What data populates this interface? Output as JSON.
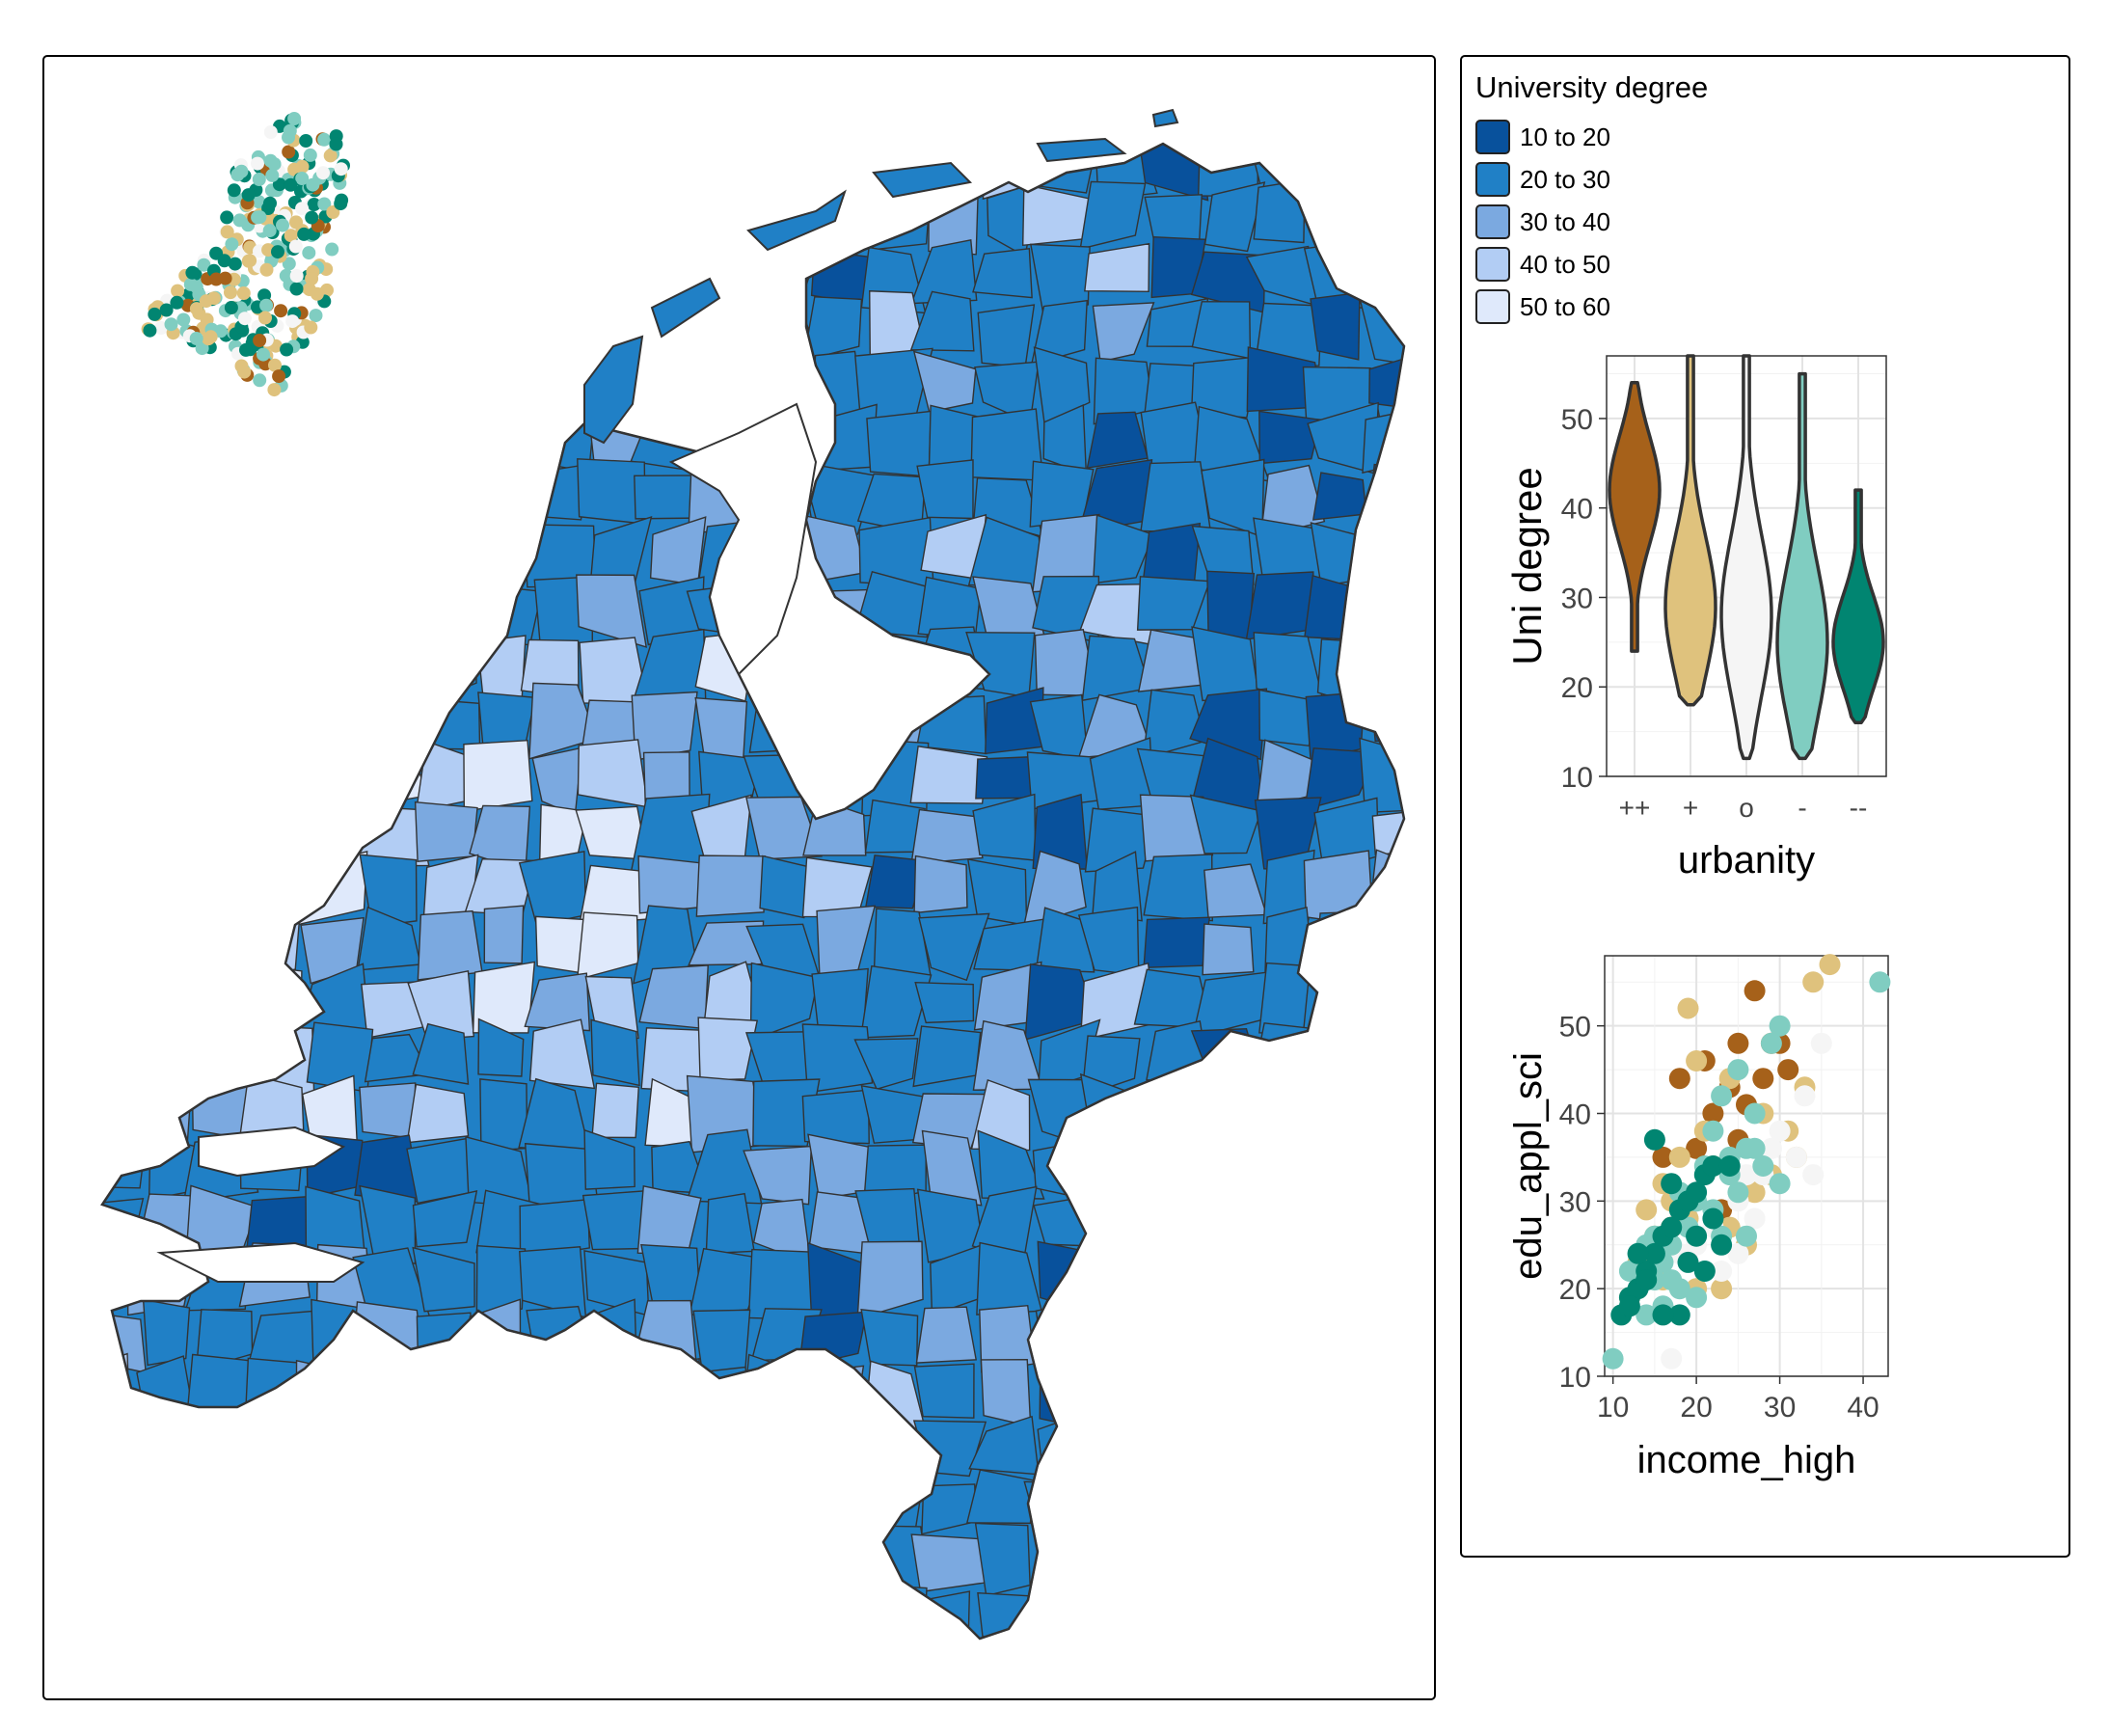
{
  "legend": {
    "title": "University degree",
    "classes": [
      {
        "label": "10 to 20",
        "color": "#08519c"
      },
      {
        "label": "20 to 30",
        "color": "#2080c6"
      },
      {
        "label": "30 to 40",
        "color": "#7ba9e0"
      },
      {
        "label": "40 to 50",
        "color": "#b2cdf4"
      },
      {
        "label": "50 to 60",
        "color": "#dfe9fb"
      }
    ]
  },
  "urbanity_colors": {
    "++": "#a6611a",
    "+": "#dfc27d",
    "o": "#f5f5f5",
    "-": "#80cdc1",
    "--": "#018571"
  },
  "chart_data": [
    {
      "type": "violin",
      "xlabel": "urbanity",
      "ylabel": "Uni degree",
      "categories": [
        "++",
        "+",
        "o",
        "-",
        "--"
      ],
      "ylim": [
        10,
        57
      ],
      "yticks": [
        10,
        20,
        30,
        40,
        50
      ],
      "grid": true,
      "ranges": [
        {
          "category": "++",
          "min": 24,
          "max": 54,
          "mode": 42
        },
        {
          "category": "+",
          "min": 18,
          "max": 57,
          "mode": 29
        },
        {
          "category": "o",
          "min": 12,
          "max": 57,
          "mode": 28
        },
        {
          "category": "-",
          "min": 12,
          "max": 55,
          "mode": 25
        },
        {
          "category": "--",
          "min": 16,
          "max": 42,
          "mode": 25
        }
      ]
    },
    {
      "type": "scatter",
      "xlabel": "income_high",
      "ylabel": "edu_appl_sci",
      "xlim": [
        9,
        43
      ],
      "ylim": [
        10,
        58
      ],
      "xticks": [
        10,
        20,
        30,
        40
      ],
      "yticks": [
        10,
        20,
        30,
        40,
        50
      ],
      "grid": true,
      "series": [
        {
          "group": "++",
          "points": [
            [
              27,
              54
            ],
            [
              25,
              48
            ],
            [
              29,
              48
            ],
            [
              21,
              46
            ],
            [
              18,
              44
            ],
            [
              24,
              43
            ],
            [
              28,
              44
            ],
            [
              31,
              45
            ],
            [
              30,
              48
            ],
            [
              22,
              40
            ],
            [
              26,
              41
            ],
            [
              16,
              35
            ],
            [
              20,
              36
            ],
            [
              25,
              37
            ],
            [
              19,
              30
            ],
            [
              23,
              29
            ],
            [
              17,
              27
            ],
            [
              14,
              24
            ]
          ]
        },
        {
          "group": "+",
          "points": [
            [
              36,
              57
            ],
            [
              34,
              55
            ],
            [
              19,
              52
            ],
            [
              20,
              46
            ],
            [
              24,
              44
            ],
            [
              33,
              43
            ],
            [
              28,
              40
            ],
            [
              31,
              38
            ],
            [
              21,
              38
            ],
            [
              18,
              35
            ],
            [
              22,
              34
            ],
            [
              16,
              32
            ],
            [
              14,
              29
            ],
            [
              17,
              30
            ],
            [
              19,
              28
            ],
            [
              24,
              27
            ],
            [
              27,
              31
            ],
            [
              15,
              26
            ],
            [
              13,
              23
            ],
            [
              12,
              19
            ],
            [
              16,
              21
            ],
            [
              20,
              20
            ],
            [
              23,
              20
            ],
            [
              26,
              25
            ],
            [
              29,
              33
            ],
            [
              32,
              35
            ]
          ]
        },
        {
          "group": "o",
          "points": [
            [
              35,
              48
            ],
            [
              33,
              42
            ],
            [
              30,
              38
            ],
            [
              32,
              35
            ],
            [
              34,
              33
            ],
            [
              28,
              33
            ],
            [
              27,
              28
            ],
            [
              25,
              30
            ],
            [
              22,
              27
            ],
            [
              20,
              25
            ],
            [
              18,
              24
            ],
            [
              25,
              24
            ],
            [
              23,
              22
            ],
            [
              17,
              12
            ],
            [
              29,
              36
            ],
            [
              26,
              33
            ]
          ]
        },
        {
          "group": "-",
          "points": [
            [
              10,
              12
            ],
            [
              42,
              55
            ],
            [
              30,
              50
            ],
            [
              29,
              48
            ],
            [
              25,
              45
            ],
            [
              23,
              42
            ],
            [
              27,
              40
            ],
            [
              26,
              36
            ],
            [
              24,
              33
            ],
            [
              21,
              34
            ],
            [
              20,
              30
            ],
            [
              18,
              31
            ],
            [
              22,
              29
            ],
            [
              19,
              27
            ],
            [
              23,
              26
            ],
            [
              17,
              25
            ],
            [
              15,
              26
            ],
            [
              14,
              25
            ],
            [
              16,
              23
            ],
            [
              13,
              24
            ],
            [
              12,
              22
            ],
            [
              15,
              21
            ],
            [
              18,
              20
            ],
            [
              16,
              18
            ],
            [
              14,
              17
            ],
            [
              21,
              22
            ],
            [
              20,
              19
            ],
            [
              17,
              21
            ],
            [
              25,
              31
            ],
            [
              24,
              35
            ],
            [
              27,
              36
            ],
            [
              22,
              38
            ],
            [
              28,
              34
            ],
            [
              26,
              26
            ],
            [
              30,
              32
            ]
          ]
        },
        {
          "group": "--",
          "points": [
            [
              11,
              17
            ],
            [
              12,
              19
            ],
            [
              13,
              20
            ],
            [
              14,
              22
            ],
            [
              15,
              24
            ],
            [
              16,
              26
            ],
            [
              17,
              27
            ],
            [
              18,
              29
            ],
            [
              19,
              30
            ],
            [
              20,
              31
            ],
            [
              21,
              33
            ],
            [
              22,
              34
            ],
            [
              24,
              34
            ],
            [
              15,
              37
            ],
            [
              17,
              32
            ],
            [
              19,
              23
            ],
            [
              18,
              17
            ],
            [
              16,
              17
            ],
            [
              21,
              22
            ],
            [
              14,
              21
            ],
            [
              12,
              18
            ],
            [
              13,
              24
            ],
            [
              20,
              26
            ],
            [
              22,
              28
            ],
            [
              23,
              25
            ]
          ]
        }
      ]
    }
  ],
  "inset_points": {
    "groups": [
      "++",
      "+",
      "o",
      "-",
      "--"
    ],
    "count": 300
  }
}
